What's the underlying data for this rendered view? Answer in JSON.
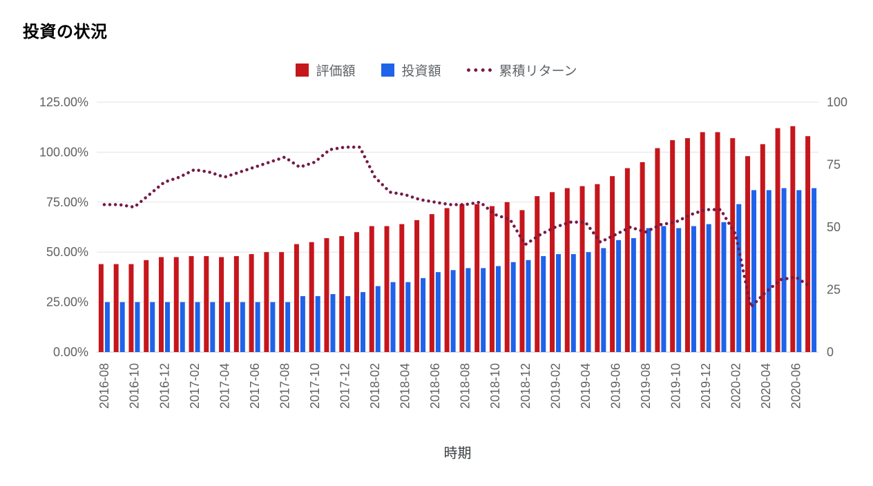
{
  "page": {
    "title": "投資の状況",
    "xaxis_title": "時期"
  },
  "chart_data": {
    "type": "bar",
    "subtype": "grouped bars with dotted line overlay (dual axis)",
    "title": "投資の状況",
    "xlabel": "時期",
    "ylabel": "",
    "grid": true,
    "legend_position": "top",
    "x_tick_step": 2,
    "categories": [
      "2016-08",
      "2016-09",
      "2016-10",
      "2016-11",
      "2016-12",
      "2017-01",
      "2017-02",
      "2017-03",
      "2017-04",
      "2017-05",
      "2017-06",
      "2017-07",
      "2017-08",
      "2017-09",
      "2017-10",
      "2017-11",
      "2017-12",
      "2018-01",
      "2018-02",
      "2018-03",
      "2018-04",
      "2018-05",
      "2018-06",
      "2018-07",
      "2018-08",
      "2018-09",
      "2018-10",
      "2018-11",
      "2018-12",
      "2019-01",
      "2019-02",
      "2019-03",
      "2019-04",
      "2019-05",
      "2019-06",
      "2019-07",
      "2019-08",
      "2019-09",
      "2019-10",
      "2019-11",
      "2019-12",
      "2020-01",
      "2020-02",
      "2020-03",
      "2020-04",
      "2020-05",
      "2020-06",
      "2020-07"
    ],
    "series": [
      {
        "name": "評価額",
        "type": "bar",
        "axis": "left",
        "unit": "%",
        "color": "#c5161c",
        "values": [
          44,
          44,
          44,
          46,
          47.5,
          47.5,
          48,
          48,
          47.5,
          48,
          49,
          50,
          50,
          54,
          55,
          57,
          58,
          60,
          63,
          63,
          64,
          66,
          69,
          72,
          74,
          74,
          73,
          75,
          71,
          78,
          80,
          82,
          83,
          84,
          88,
          92,
          95,
          102,
          106,
          107,
          110,
          110,
          107,
          98,
          104,
          112,
          113,
          108
        ]
      },
      {
        "name": "投資額",
        "type": "bar",
        "axis": "left",
        "unit": "%",
        "color": "#1e63e9",
        "values": [
          25,
          25,
          25,
          25,
          25,
          25,
          25,
          25,
          25,
          25,
          25,
          25,
          25,
          28,
          28,
          29,
          28,
          30,
          33,
          35,
          35,
          37,
          40,
          41,
          42,
          42,
          43,
          45,
          46,
          48,
          49,
          49,
          50,
          52,
          56,
          57,
          62,
          63,
          62,
          63,
          64,
          65,
          74,
          81,
          81,
          82,
          81,
          82
        ]
      },
      {
        "name": "累積リターン",
        "type": "line",
        "style": "dotted",
        "axis": "right",
        "color": "#741b47",
        "values": [
          59,
          59,
          58,
          63,
          68,
          70,
          73,
          72,
          70,
          72,
          74,
          76,
          78,
          74,
          76,
          81,
          82,
          82,
          70,
          64,
          63,
          61,
          60,
          59,
          59,
          60,
          55,
          53,
          43,
          47,
          50,
          52,
          52,
          44,
          47,
          50,
          48,
          51,
          52,
          55,
          57,
          57,
          47,
          18,
          24,
          29,
          30,
          26
        ]
      }
    ],
    "left_axis": {
      "min": 0,
      "max": 125,
      "format": "percent",
      "tick_values": [
        0,
        25,
        50,
        75,
        100,
        125
      ],
      "ticks": [
        "0.00%",
        "25.00%",
        "50.00%",
        "75.00%",
        "100.00%",
        "125.00%"
      ]
    },
    "right_axis": {
      "min": 0,
      "max": 100,
      "tick_values": [
        0,
        25,
        50,
        75,
        100
      ],
      "ticks": [
        "0",
        "25",
        "50",
        "75",
        "100"
      ]
    }
  }
}
